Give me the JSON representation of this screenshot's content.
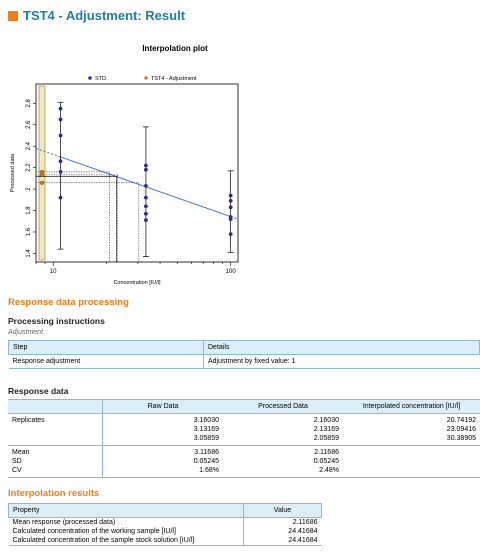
{
  "header": {
    "title": "TST4 - Adjustment: Result"
  },
  "plot": {
    "title": "Interpolation plot",
    "xlabel": "Concentration  [IU/l]",
    "ylabel": "Processed data",
    "legend": {
      "std": "STD",
      "tst": "TST4 - Adjustment"
    },
    "y_ticks": [
      "1.4",
      "1.6",
      "1.8",
      "2",
      "2.2",
      "2.4",
      "2.6",
      "2.8"
    ],
    "x_ticks": [
      "10",
      "100"
    ],
    "colors": {
      "std": "#2a2f8f",
      "tst": "#e07b1a",
      "line": "#3f6fe0",
      "band": "#f2eabc"
    }
  },
  "chart_data": {
    "type": "scatter",
    "title": "Interpolation plot",
    "xlabel": "Concentration  [IU/l]",
    "ylabel": "Processed data",
    "x_scale": "log",
    "xlim": [
      8,
      110
    ],
    "ylim": [
      1.32,
      2.98
    ],
    "y_ticks": [
      1.4,
      1.6,
      1.8,
      2.0,
      2.2,
      2.4,
      2.6,
      2.8
    ],
    "x_ticks": [
      10,
      100
    ],
    "legend_position": "top",
    "series": [
      {
        "name": "STD",
        "points": [
          {
            "x": 11,
            "y": 2.75
          },
          {
            "x": 11,
            "y": 2.65
          },
          {
            "x": 11,
            "y": 2.5
          },
          {
            "x": 11,
            "y": 2.26
          },
          {
            "x": 11,
            "y": 2.16
          },
          {
            "x": 11,
            "y": 1.92
          },
          {
            "x": 33.3,
            "y": 2.22
          },
          {
            "x": 33.3,
            "y": 2.18
          },
          {
            "x": 33.3,
            "y": 2.03
          },
          {
            "x": 33.3,
            "y": 1.92
          },
          {
            "x": 33.3,
            "y": 1.84
          },
          {
            "x": 33.3,
            "y": 1.77
          },
          {
            "x": 33.3,
            "y": 1.71
          },
          {
            "x": 100,
            "y": 1.94
          },
          {
            "x": 100,
            "y": 1.89
          },
          {
            "x": 100,
            "y": 1.83
          },
          {
            "x": 100,
            "y": 1.74
          },
          {
            "x": 100,
            "y": 1.72
          },
          {
            "x": 100,
            "y": 1.58
          }
        ],
        "error_bars": [
          {
            "x": 11,
            "low": 1.44,
            "high": 2.81
          },
          {
            "x": 33.3,
            "low": 1.37,
            "high": 2.58
          },
          {
            "x": 100,
            "low": 1.41,
            "high": 2.17
          }
        ]
      },
      {
        "name": "TST4 - Adjustment",
        "points": [
          {
            "x": 20.74192,
            "y": 2.1603
          },
          {
            "x": 23.09416,
            "y": 2.13169
          },
          {
            "x": 30.38905,
            "y": 2.05859
          }
        ]
      }
    ],
    "fit_line": {
      "x": [
        8,
        110
      ],
      "y": [
        2.38,
        1.72
      ]
    }
  },
  "response_processing": {
    "section_title": "Response data processing",
    "subtitle": "Processing instructions",
    "italic_label": "Adjustment",
    "headers": [
      "Step",
      "Details"
    ],
    "rows": [
      [
        "Response adjustment",
        "Adjustment by fixed value: 1"
      ]
    ]
  },
  "response_data": {
    "section_title": "Response data",
    "headers": [
      "",
      "Raw Data",
      "Processed Data",
      "Interpolated concentration [IU/l]"
    ],
    "replicates_label": "Replicates",
    "raw": [
      "3.16030",
      "3.13169",
      "3.05859"
    ],
    "processed": [
      "2.16030",
      "2.13169",
      "2.05859"
    ],
    "interpolated": [
      "20.74192",
      "23.09416",
      "30.38905"
    ],
    "stats_labels": [
      "Mean",
      "SD",
      "CV"
    ],
    "stats_raw": [
      "3.11686",
      "0.05245",
      "1.68%"
    ],
    "stats_processed": [
      "2.11686",
      "0.05245",
      "2.48%"
    ]
  },
  "interpolation_results": {
    "section_title": "Interpolation results",
    "headers": [
      "Property",
      "Value"
    ],
    "rows": [
      [
        "Mean response (processed data)",
        "2.11686"
      ],
      [
        "Calculated concentration of the working sample  [IU/l]",
        "24.41684"
      ],
      [
        "Calculated concentration of the sample stock solution  [IU/l]",
        "24.41684"
      ]
    ]
  }
}
